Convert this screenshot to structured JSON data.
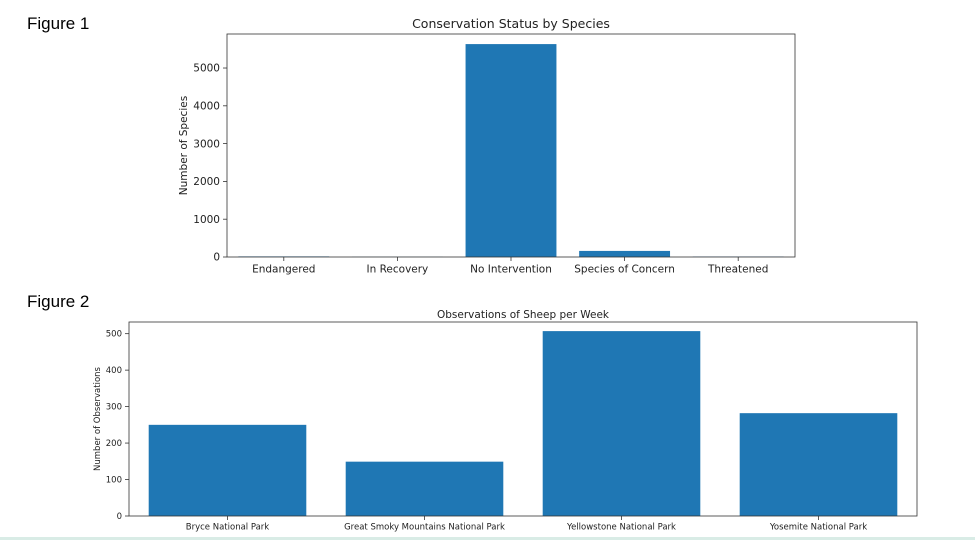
{
  "figures": [
    {
      "label": "Figure 1"
    },
    {
      "label": "Figure 2"
    }
  ],
  "chart_data": [
    {
      "type": "bar",
      "title": "Conservation Status by Species",
      "xlabel": "",
      "ylabel": "Number of Species",
      "categories": [
        "Endangered",
        "In Recovery",
        "No Intervention",
        "Species of Concern",
        "Threatened"
      ],
      "values": [
        15,
        4,
        5633,
        161,
        10
      ],
      "ylim": [
        0,
        5900
      ],
      "yticks": [
        0,
        1000,
        2000,
        3000,
        4000,
        5000
      ],
      "bar_color": "#1f77b4",
      "grid": false
    },
    {
      "type": "bar",
      "title": "Observations of Sheep per Week",
      "xlabel": "",
      "ylabel": "Number of Observations",
      "categories": [
        "Bryce National Park",
        "Great Smoky Mountains National Park",
        "Yellowstone National Park",
        "Yosemite National Park"
      ],
      "values": [
        250,
        149,
        507,
        282
      ],
      "ylim": [
        0,
        532
      ],
      "yticks": [
        0,
        100,
        200,
        300,
        400,
        500
      ],
      "bar_color": "#1f77b4",
      "grid": false
    }
  ]
}
